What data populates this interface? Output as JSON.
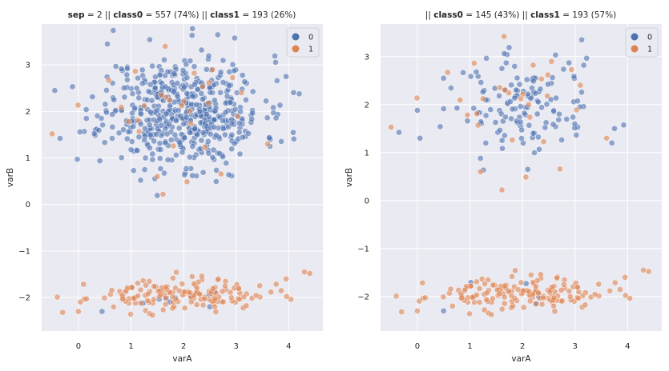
{
  "chart_data": [
    {
      "type": "scatter",
      "title_parts": [
        {
          "text": "sep",
          "bold": true
        },
        {
          "text": " = 2 || ",
          "bold": false
        },
        {
          "text": "class0",
          "bold": true
        },
        {
          "text": " = 557 (74%)  || ",
          "bold": false
        },
        {
          "text": "class1",
          "bold": true
        },
        {
          "text": " = 193 (26%)",
          "bold": false
        }
      ],
      "xlabel": "varA",
      "ylabel": "varB",
      "xlim": [
        -0.7,
        4.65
      ],
      "ylim": [
        -2.72,
        3.88
      ],
      "xticks": [
        0,
        1,
        2,
        3,
        4
      ],
      "yticks": [
        -2,
        -1,
        0,
        1,
        2,
        3
      ],
      "legend": {
        "position": "top-right",
        "entries": [
          "0",
          "1"
        ]
      },
      "colors": {
        "0": "#4c72b0",
        "1": "#dd8452"
      },
      "grid": true,
      "series": [
        {
          "name": "0",
          "generate": {
            "n": 557,
            "seed": 11,
            "clusters": [
              {
                "cx": 2.0,
                "cy": 2.0,
                "sx": 0.75,
                "sy": 0.6,
                "frac": 0.985
              },
              {
                "cx": 1.8,
                "cy": -2.0,
                "sx": 0.7,
                "sy": 0.15,
                "frac": 0.015
              }
            ]
          }
        },
        {
          "name": "1",
          "generate": {
            "n": 193,
            "seed": 23,
            "clusters": [
              {
                "cx": 1.9,
                "cy": -1.95,
                "sx": 0.85,
                "sy": 0.16,
                "frac": 0.85
              },
              {
                "cx": 2.0,
                "cy": 2.0,
                "sx": 0.8,
                "sy": 0.6,
                "frac": 0.15
              }
            ]
          }
        }
      ],
      "anchor_points": {
        "0": [
          [
            -0.45,
            2.45
          ],
          [
            -0.35,
            1.42
          ],
          [
            0.55,
            3.45
          ],
          [
            4.2,
            2.38
          ],
          [
            3.95,
            2.75
          ],
          [
            2.65,
            3.65
          ],
          [
            0.45,
            -2.3
          ],
          [
            2.5,
            -2.2
          ],
          [
            0.15,
            1.85
          ]
        ],
        "1": [
          [
            -0.5,
            1.52
          ],
          [
            -0.3,
            -2.32
          ],
          [
            4.3,
            -1.45
          ],
          [
            4.4,
            -1.48
          ],
          [
            3.95,
            -1.6
          ],
          [
            1.65,
            3.4
          ],
          [
            1.5,
            0.6
          ],
          [
            0.0,
            -2.3
          ],
          [
            3.6,
            1.3
          ]
        ]
      }
    },
    {
      "type": "scatter",
      "title_parts": [
        {
          "text": "|| ",
          "bold": false
        },
        {
          "text": "class0",
          "bold": true
        },
        {
          "text": " = 145 (43%)  || ",
          "bold": false
        },
        {
          "text": "class1",
          "bold": true
        },
        {
          "text": " = 193 (57%)",
          "bold": false
        }
      ],
      "xlabel": "varA",
      "ylabel": "varB",
      "xlim": [
        -0.7,
        4.65
      ],
      "ylim": [
        -2.72,
        3.68
      ],
      "xticks": [
        0,
        1,
        2,
        3,
        4
      ],
      "yticks": [
        -2,
        -1,
        0,
        1,
        2,
        3
      ],
      "legend": {
        "position": "top-right",
        "entries": [
          "0",
          "1"
        ]
      },
      "colors": {
        "0": "#4c72b0",
        "1": "#dd8452"
      },
      "grid": true,
      "series": [
        {
          "name": "0",
          "generate": {
            "n": 145,
            "seed": 31,
            "clusters": [
              {
                "cx": 2.0,
                "cy": 2.0,
                "sx": 0.7,
                "sy": 0.55,
                "frac": 0.97
              },
              {
                "cx": 1.8,
                "cy": -2.0,
                "sx": 0.6,
                "sy": 0.15,
                "frac": 0.03
              }
            ]
          }
        },
        {
          "name": "1",
          "generate": {
            "n": 193,
            "seed": 23,
            "clusters": [
              {
                "cx": 1.9,
                "cy": -1.95,
                "sx": 0.85,
                "sy": 0.16,
                "frac": 0.85
              },
              {
                "cx": 2.0,
                "cy": 2.0,
                "sx": 0.8,
                "sy": 0.6,
                "frac": 0.15
              }
            ]
          }
        }
      ],
      "anchor_points": {
        "0": [
          [
            -0.35,
            1.42
          ],
          [
            0.05,
            1.3
          ],
          [
            0.0,
            1.88
          ],
          [
            3.7,
            1.2
          ],
          [
            3.75,
            1.5
          ],
          [
            2.1,
            0.65
          ],
          [
            1.2,
            0.88
          ],
          [
            0.5,
            -2.3
          ],
          [
            0.5,
            2.55
          ]
        ],
        "1": [
          [
            -0.5,
            1.53
          ],
          [
            -0.3,
            -2.32
          ],
          [
            4.3,
            -1.45
          ],
          [
            4.4,
            -1.48
          ],
          [
            3.95,
            -1.6
          ],
          [
            1.65,
            3.42
          ],
          [
            1.2,
            0.6
          ],
          [
            0.0,
            -2.3
          ],
          [
            3.6,
            1.3
          ]
        ]
      }
    }
  ]
}
